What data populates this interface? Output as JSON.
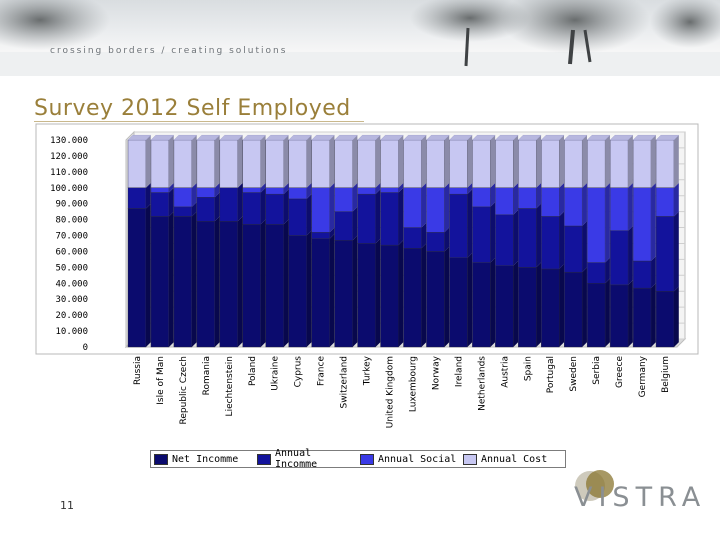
{
  "header": {
    "tagline": "crossing borders / creating solutions"
  },
  "slide": {
    "title": "Survey 2012 Self Employed",
    "page_number": "11"
  },
  "logo": {
    "text": "VISTRA",
    "accent_color": "#8a7530"
  },
  "colors": {
    "net_income": "#0b0b6e",
    "annual_income": "#13139c",
    "annual_social": "#3a3ae6",
    "annual_cost": "#c7c7f2",
    "title": "#9a7f3a"
  },
  "chart_data": {
    "type": "bar",
    "stacked": true,
    "three_d": true,
    "categories": [
      "Russia",
      "Isle of Man",
      "Republic Czech",
      "Romania",
      "Liechtenstein",
      "Poland",
      "Ukraine",
      "Cyprus",
      "France",
      "Switzerland",
      "Turkey",
      "United Kingdom",
      "Luxembourg",
      "Norway",
      "Ireland",
      "Netherlands",
      "Austria",
      "Spain",
      "Portugal",
      "Sweden",
      "Serbia",
      "Greece",
      "Germany",
      "Belgium"
    ],
    "y_ticks": [
      "0",
      "10.000",
      "20.000",
      "30.000",
      "40.000",
      "50.000",
      "60.000",
      "70.000",
      "80.000",
      "90.000",
      "100.000",
      "110.000",
      "120.000",
      "130.000"
    ],
    "ylim": [
      0,
      130000
    ],
    "grid": true,
    "legend_position": "bottom",
    "series": [
      {
        "name": "Net Incomme",
        "color": "#0b0b6e",
        "values": [
          87000,
          82000,
          82000,
          79000,
          79000,
          77000,
          77000,
          70000,
          68000,
          67000,
          65000,
          64000,
          62000,
          60000,
          56000,
          53000,
          51000,
          50000,
          49000,
          47000,
          40000,
          39000,
          37000,
          35000
        ]
      },
      {
        "name": "Annual Incomme",
        "color": "#13139c",
        "values": [
          13000,
          15000,
          6000,
          15000,
          21000,
          20000,
          19000,
          23000,
          4000,
          18000,
          31000,
          33000,
          13000,
          12000,
          40000,
          35000,
          32000,
          37000,
          33000,
          29000,
          13000,
          34000,
          17000,
          47000
        ]
      },
      {
        "name": "Annual Social",
        "color": "#3a3ae6",
        "values": [
          0,
          3000,
          12000,
          6000,
          0,
          3000,
          4000,
          7000,
          28000,
          15000,
          4000,
          3000,
          25000,
          28000,
          4000,
          12000,
          17000,
          13000,
          18000,
          24000,
          47000,
          27000,
          46000,
          18000
        ]
      },
      {
        "name": "Annual Cost",
        "color": "#c7c7f2",
        "values": [
          30000,
          30000,
          30000,
          30000,
          30000,
          30000,
          30000,
          30000,
          30000,
          30000,
          30000,
          30000,
          30000,
          30000,
          30000,
          30000,
          30000,
          30000,
          30000,
          30000,
          30000,
          30000,
          30000,
          30000
        ]
      }
    ]
  }
}
